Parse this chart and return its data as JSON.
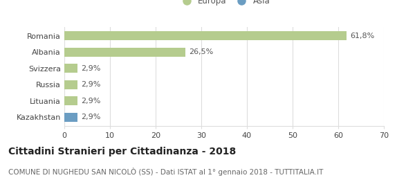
{
  "categories": [
    "Romania",
    "Albania",
    "Svizzera",
    "Russia",
    "Lituania",
    "Kazakhstan"
  ],
  "values": [
    61.8,
    26.5,
    2.9,
    2.9,
    2.9,
    2.9
  ],
  "labels": [
    "61,8%",
    "26,5%",
    "2,9%",
    "2,9%",
    "2,9%",
    "2,9%"
  ],
  "colors": [
    "#b5cc8e",
    "#b5cc8e",
    "#b5cc8e",
    "#b5cc8e",
    "#b5cc8e",
    "#6b9dc2"
  ],
  "legend": [
    {
      "label": "Europa",
      "color": "#b5cc8e"
    },
    {
      "label": "Asia",
      "color": "#6b9dc2"
    }
  ],
  "xlim": [
    0,
    70
  ],
  "xticks": [
    0,
    10,
    20,
    30,
    40,
    50,
    60,
    70
  ],
  "title": "Cittadini Stranieri per Cittadinanza - 2018",
  "subtitle": "COMUNE DI NUGHEDU SAN NICOLÒ (SS) - Dati ISTAT al 1° gennaio 2018 - TUTTITALIA.IT",
  "title_fontsize": 10,
  "subtitle_fontsize": 7.5,
  "label_fontsize": 8,
  "tick_fontsize": 8,
  "legend_fontsize": 8.5,
  "background_color": "#ffffff",
  "grid_color": "#dddddd"
}
